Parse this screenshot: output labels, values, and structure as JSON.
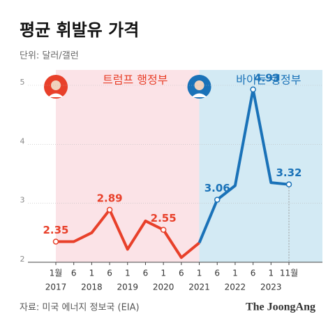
{
  "chart_data": {
    "type": "line",
    "title": "평균 휘발유 가격",
    "subtitle": "단위: 달러/갤런",
    "source": "자료: 미국 에너지 정보국 (EIA)",
    "brand": "The JoongAng",
    "categories": [
      "1월",
      "6",
      "1",
      "6",
      "1",
      "6",
      "1",
      "6",
      "1",
      "6",
      "1",
      "6",
      "1",
      "11월"
    ],
    "year_labels": [
      "2017",
      null,
      "2018",
      null,
      "2019",
      null,
      "2020",
      null,
      "2021",
      null,
      "2022",
      null,
      "2023",
      null
    ],
    "series": [
      {
        "name": "트럼프 행정부",
        "color": "#e8402a",
        "band_color": "#fbe3e7",
        "values": [
          2.35,
          2.35,
          2.5,
          2.89,
          2.22,
          2.7,
          2.55,
          2.08,
          2.33,
          null,
          null,
          null,
          null,
          null
        ],
        "value_labels": [
          "2.35",
          null,
          null,
          "2.89",
          null,
          null,
          "2.55",
          null,
          null,
          null,
          null,
          null,
          null,
          null
        ]
      },
      {
        "name": "바이든 행정부",
        "color": "#1a72b8",
        "band_color": "#d3eaf4",
        "values": [
          null,
          null,
          null,
          null,
          null,
          null,
          null,
          null,
          2.33,
          3.06,
          3.3,
          4.93,
          3.35,
          3.32
        ],
        "value_labels": [
          null,
          null,
          null,
          null,
          null,
          null,
          null,
          null,
          null,
          "3.06",
          null,
          "4.93",
          null,
          "3.32"
        ]
      }
    ],
    "ylim": [
      2,
      5
    ],
    "yticks": [
      2,
      3,
      4,
      5
    ],
    "grid": true
  }
}
